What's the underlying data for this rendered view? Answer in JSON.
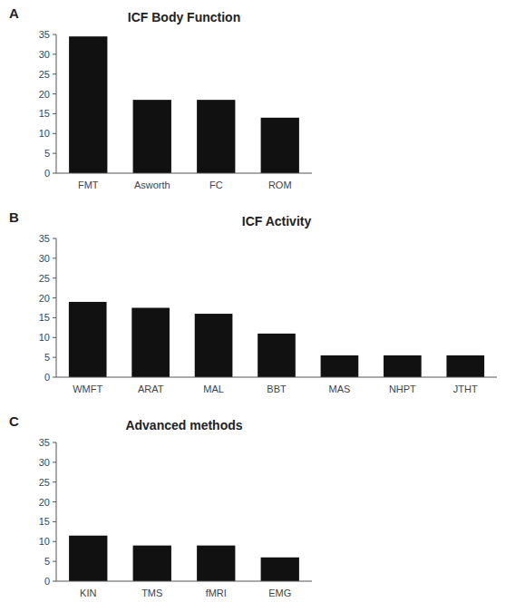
{
  "chart_data": [
    {
      "type": "bar",
      "title": "ICF Body Function",
      "annotations": [
        "A"
      ],
      "categories": [
        "FMT",
        "Asworth",
        "FC",
        "ROM"
      ],
      "values": [
        34.5,
        18.5,
        18.5,
        14.0
      ],
      "color": "#111111",
      "ylim": [
        0,
        35
      ],
      "yticks": [
        0,
        5,
        10,
        15,
        20,
        25,
        30,
        35
      ],
      "grid": false
    },
    {
      "type": "bar",
      "title": "ICF Activity",
      "annotations": [
        "B"
      ],
      "categories": [
        "WMFT",
        "ARAT",
        "MAL",
        "BBT",
        "MAS",
        "NHPT",
        "JTHT"
      ],
      "values": [
        19.0,
        17.5,
        16.0,
        11.0,
        5.5,
        5.5,
        5.5
      ],
      "color": "#111111",
      "ylim": [
        0,
        35
      ],
      "yticks": [
        0,
        5,
        10,
        15,
        20,
        25,
        30,
        35
      ],
      "grid": false
    },
    {
      "type": "bar",
      "title": "Advanced methods",
      "annotations": [
        "C"
      ],
      "categories": [
        "KIN",
        "TMS",
        "fMRI",
        "EMG"
      ],
      "values": [
        11.5,
        9.0,
        9.0,
        6.0
      ],
      "color": "#111111",
      "ylim": [
        0,
        35
      ],
      "yticks": [
        0,
        5,
        10,
        15,
        20,
        25,
        30,
        35
      ],
      "grid": false
    }
  ]
}
